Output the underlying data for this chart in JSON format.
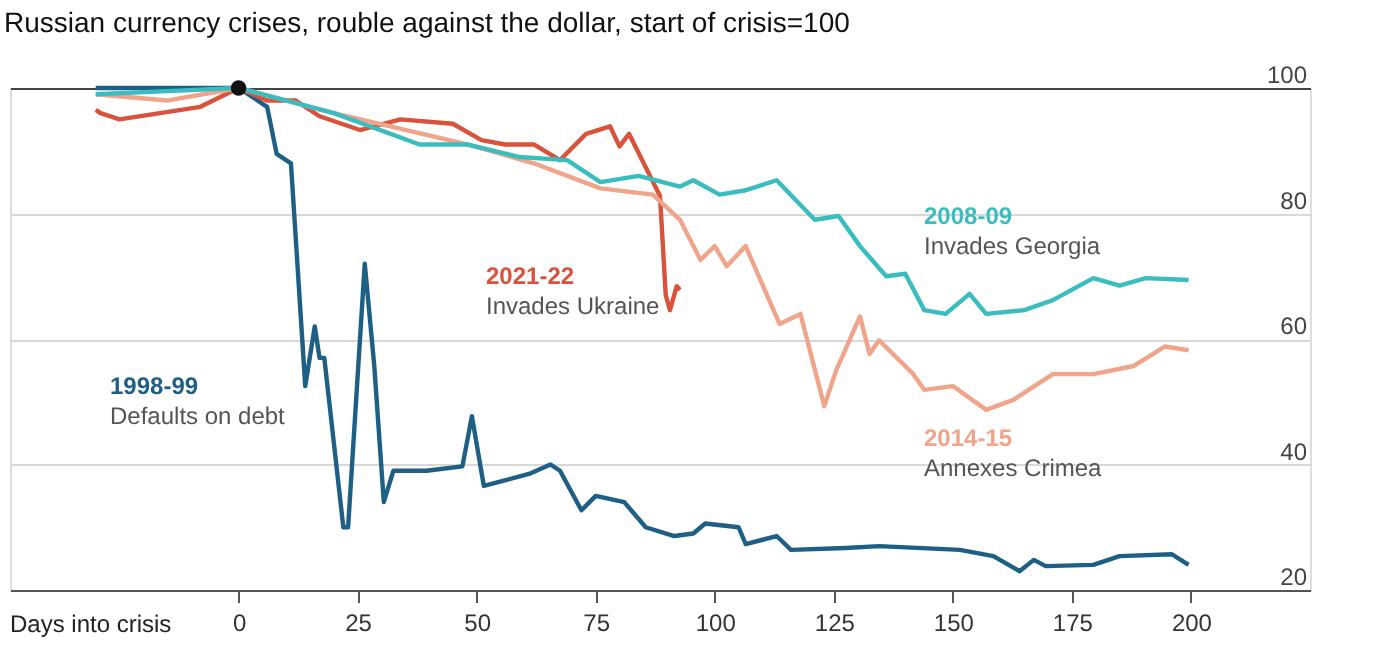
{
  "chart_data": {
    "type": "line",
    "title": "Russian currency crises, rouble against the dollar, start of crisis=100",
    "xlabel": "Days into crisis",
    "xlim": [
      -48,
      225
    ],
    "xticks": [
      0,
      25,
      50,
      75,
      100,
      125,
      150,
      175,
      200
    ],
    "ylim": [
      20,
      100
    ],
    "yticks": [
      20,
      40,
      60,
      80,
      100
    ],
    "grid": "y",
    "line_style": "solid",
    "series": [
      {
        "name": "1998-99",
        "color": "#1d5f85",
        "x": [
          -30,
          -15,
          0,
          6,
          8,
          11,
          14,
          16,
          17,
          18,
          22,
          23,
          26.5,
          28.5,
          30.5,
          32.5,
          39.5,
          47,
          49,
          51.5,
          61,
          65.5,
          67.5,
          72,
          75,
          81,
          85.5,
          91.5,
          95.5,
          98,
          105,
          106.5,
          113,
          116,
          127.5,
          134.5,
          151.5,
          158.5,
          164,
          167,
          169.5,
          179.5,
          185,
          196,
          199.5
        ],
        "values": [
          100,
          100,
          100,
          97,
          89.5,
          88,
          52.5,
          62,
          57,
          57,
          30,
          30,
          72,
          55.7,
          34,
          39,
          39,
          39.7,
          47.7,
          36.6,
          38.5,
          40,
          39,
          32.7,
          35,
          34,
          30,
          28.6,
          29,
          30.6,
          30,
          27.3,
          28.6,
          26.4,
          26.7,
          27,
          26.4,
          25.4,
          23,
          24.8,
          23.8,
          24,
          25.4,
          25.7,
          24
        ]
      },
      {
        "name": "2021-22",
        "color": "#d9523b",
        "x": [
          -30,
          -29,
          -25,
          -8,
          0,
          6,
          12,
          17,
          25.5,
          34,
          45,
          51,
          56,
          62,
          67.5,
          73,
          78,
          80,
          82,
          88.5,
          89.7,
          90.6,
          92,
          92.7
        ],
        "values": [
          96.5,
          96,
          95,
          97,
          100,
          98,
          98,
          95.5,
          93.3,
          95,
          94.3,
          91.7,
          91,
          91,
          88.5,
          92.7,
          93.9,
          90.7,
          92.7,
          82.8,
          67,
          64.6,
          68.4,
          67.8
        ]
      },
      {
        "name": "2014-15",
        "color": "#f0a58a",
        "x": [
          -30,
          -15,
          0,
          20,
          48,
          62,
          76,
          87,
          92.7,
          97,
          100,
          102.5,
          106.5,
          113.6,
          118,
          123,
          125.5,
          130.5,
          132.5,
          134.5,
          141.7,
          144,
          150,
          157,
          162.7,
          171,
          179.5,
          188,
          194.5,
          199.5
        ],
        "values": [
          99,
          98,
          100,
          96,
          91,
          88,
          84,
          83,
          79,
          72.6,
          74.8,
          71.6,
          74.8,
          62.4,
          64,
          49.3,
          55,
          63.6,
          57.6,
          59.8,
          54.4,
          51.9,
          52.5,
          48.7,
          50.3,
          54.4,
          54.4,
          55.7,
          58.8,
          58.2
        ]
      },
      {
        "name": "2008-09",
        "color": "#3bbdc0",
        "x": [
          -30,
          -15,
          0,
          20,
          38,
          48,
          59,
          69,
          76,
          84,
          92.7,
          95.5,
          101,
          106.5,
          113,
          121,
          126,
          130.5,
          136,
          140,
          144,
          148.5,
          153.5,
          157,
          165,
          171,
          179.5,
          185,
          190.5,
          199.5
        ],
        "values": [
          99,
          99.5,
          100,
          96,
          91,
          91,
          89,
          88.5,
          85,
          86,
          84.3,
          85.3,
          83,
          83.7,
          85.3,
          79,
          79.6,
          74.8,
          70,
          70.4,
          64.6,
          64,
          67.2,
          64,
          64.6,
          66.2,
          69.7,
          68.5,
          69.7,
          69.4
        ]
      },
      {
        "type": "scatter",
        "color": "#111111",
        "x": [
          0
        ],
        "values": [
          100
        ]
      }
    ],
    "annotations": [
      "Defaults on debt",
      "Invades Ukraine",
      "Annexes Crimea",
      "Invades Georgia"
    ]
  }
}
